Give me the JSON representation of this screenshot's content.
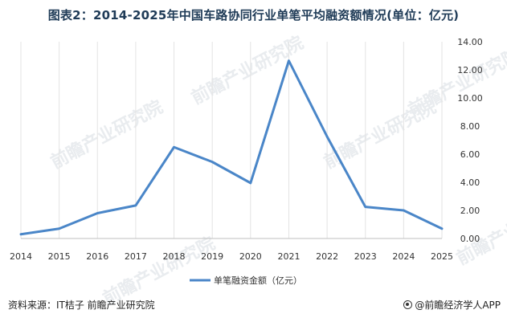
{
  "title": "图表2：2014-2025年中国车路协同行业单笔平均融资额情况(单位：亿元)",
  "watermark": "前瞻产业研究院",
  "footer": {
    "source": "资料来源：IT桔子 前瞻产业研究院",
    "brand": "@前瞻经济学人APP"
  },
  "colors": {
    "line": "#4a86c8",
    "grid": "#e3e3e3",
    "axis": "#bfbfbf",
    "title": "#1f3b57"
  },
  "chart_data": {
    "type": "line",
    "x": [
      "2014",
      "2015",
      "2016",
      "2017",
      "2018",
      "2019",
      "2020",
      "2021",
      "2022",
      "2023",
      "2024",
      "2025"
    ],
    "series": [
      {
        "name": "单笔融资金额（亿元）",
        "values": [
          0.3,
          0.7,
          1.8,
          2.35,
          6.5,
          5.45,
          3.95,
          12.65,
          7.25,
          2.25,
          2.0,
          0.7
        ]
      }
    ],
    "ylim": [
      0,
      14
    ],
    "yticks": [
      "0.00",
      "2.00",
      "4.00",
      "6.00",
      "8.00",
      "10.00",
      "12.00",
      "14.00"
    ],
    "y_axis_position": "right",
    "grid": "vertical",
    "legend": "bottom-center",
    "xlabel": "",
    "ylabel": ""
  }
}
